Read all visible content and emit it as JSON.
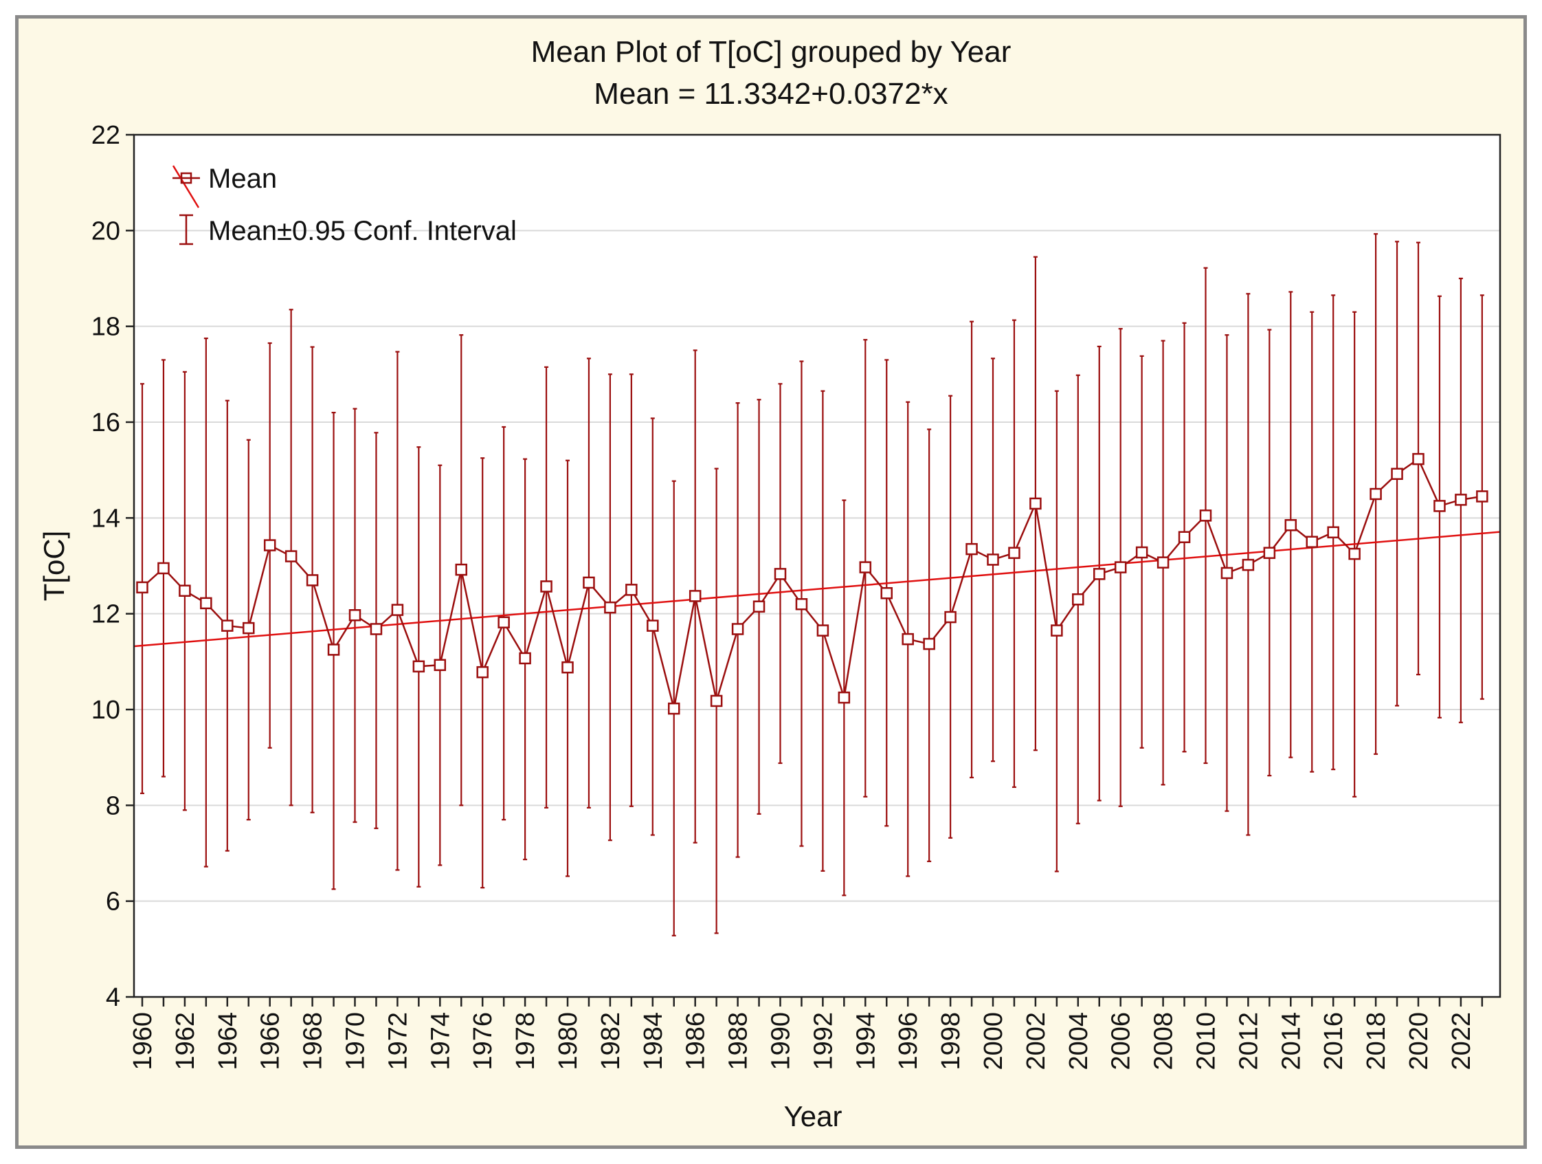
{
  "colors": {
    "frame_bg": "#fdf9e6",
    "frame_border": "#8a8a8a",
    "plot_bg": "#ffffff",
    "series": "#9b0e0e",
    "fit_line": "#e01010",
    "grid": "#d9d9d9"
  },
  "chart_data": {
    "type": "line",
    "title": "Mean Plot of T[oC] grouped by  Year",
    "subtitle": "Mean = 11.3342+0.0372*x",
    "xlabel": "Year",
    "ylabel": "T[oC]",
    "ylim": [
      4,
      22
    ],
    "yticks": [
      "4",
      "6",
      "8",
      "10",
      "12",
      "14",
      "16",
      "18",
      "20",
      "22"
    ],
    "xtick_labels": [
      "1960",
      "1962",
      "1964",
      "1966",
      "1968",
      "1970",
      "1972",
      "1974",
      "1976",
      "1978",
      "1980",
      "1982",
      "1984",
      "1986",
      "1988",
      "1990",
      "1992",
      "1994",
      "1996",
      "1998",
      "2000",
      "2002",
      "2004",
      "2006",
      "2008",
      "2010",
      "2012",
      "2014",
      "2016",
      "2018",
      "2020",
      "2022"
    ],
    "grid": "horizontal",
    "legend_position": "top-left",
    "legend": {
      "mean": "Mean",
      "ci": "Mean±0.95 Conf. Interval"
    },
    "x": [
      1960,
      1961,
      1962,
      1963,
      1964,
      1965,
      1966,
      1967,
      1968,
      1969,
      1970,
      1971,
      1972,
      1973,
      1974,
      1975,
      1976,
      1977,
      1978,
      1979,
      1980,
      1981,
      1982,
      1983,
      1984,
      1985,
      1986,
      1987,
      1988,
      1989,
      1990,
      1991,
      1992,
      1993,
      1994,
      1995,
      1996,
      1997,
      1998,
      1999,
      2000,
      2001,
      2002,
      2003,
      2004,
      2005,
      2006,
      2007,
      2008,
      2009,
      2010,
      2011,
      2012,
      2013,
      2014,
      2015,
      2016,
      2017,
      2018,
      2019,
      2020,
      2021,
      2022,
      2023
    ],
    "mean": [
      12.55,
      12.95,
      12.48,
      12.22,
      11.75,
      11.7,
      13.43,
      13.2,
      12.7,
      11.25,
      11.97,
      11.68,
      12.08,
      10.9,
      10.93,
      12.92,
      10.78,
      11.82,
      11.07,
      12.57,
      10.88,
      12.65,
      12.13,
      12.5,
      11.75,
      10.02,
      12.37,
      10.18,
      11.68,
      12.15,
      12.83,
      12.2,
      11.65,
      10.25,
      12.97,
      12.43,
      11.47,
      11.37,
      11.93,
      13.35,
      13.13,
      13.27,
      14.3,
      11.65,
      12.3,
      12.83,
      12.97,
      13.28,
      13.07,
      13.6,
      14.05,
      12.85,
      13.02,
      13.27,
      13.85,
      13.5,
      13.7,
      13.25,
      14.5,
      14.92,
      15.23,
      14.25,
      14.38,
      14.45
    ],
    "ci_lower": [
      8.25,
      8.6,
      7.9,
      6.72,
      7.05,
      7.7,
      9.2,
      8.0,
      7.85,
      6.25,
      7.65,
      7.52,
      6.65,
      6.3,
      6.75,
      8.0,
      6.28,
      7.7,
      6.87,
      7.95,
      6.52,
      7.95,
      7.27,
      7.98,
      7.38,
      5.28,
      7.22,
      5.33,
      6.92,
      7.82,
      8.88,
      7.15,
      6.63,
      6.12,
      8.18,
      7.57,
      6.52,
      6.83,
      7.32,
      8.58,
      8.92,
      8.38,
      9.15,
      6.62,
      7.62,
      8.1,
      7.98,
      9.2,
      8.43,
      9.12,
      8.88,
      7.88,
      7.38,
      8.62,
      9.0,
      8.7,
      8.75,
      8.18,
      9.07,
      10.08,
      10.73,
      9.83,
      9.73,
      10.22
    ],
    "ci_upper": [
      16.8,
      17.3,
      17.05,
      17.75,
      16.45,
      15.63,
      17.65,
      18.35,
      17.57,
      16.2,
      16.28,
      15.78,
      17.47,
      15.48,
      15.1,
      17.82,
      15.25,
      15.9,
      15.23,
      17.15,
      15.2,
      17.33,
      17.0,
      17.0,
      16.08,
      14.77,
      17.5,
      15.03,
      16.4,
      16.47,
      16.8,
      17.27,
      16.65,
      14.37,
      17.72,
      17.3,
      16.42,
      15.85,
      16.55,
      18.1,
      17.33,
      18.13,
      19.45,
      16.65,
      16.98,
      17.58,
      17.95,
      17.38,
      17.7,
      18.07,
      19.22,
      17.82,
      18.68,
      17.93,
      18.72,
      18.3,
      18.65,
      18.3,
      19.93,
      19.77,
      19.75,
      18.63,
      19.0,
      18.65
    ],
    "fit": {
      "intercept": 11.3342,
      "slope": 0.0372
    }
  }
}
